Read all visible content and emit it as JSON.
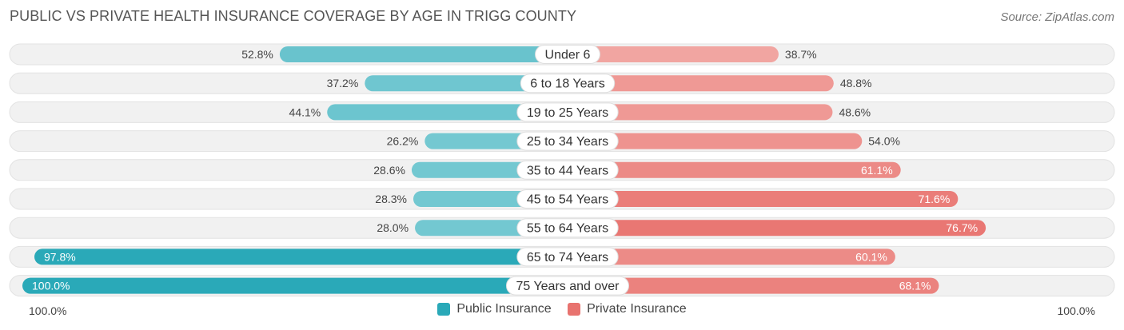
{
  "title": "PUBLIC VS PRIVATE HEALTH INSURANCE COVERAGE BY AGE IN TRIGG COUNTY",
  "source": "Source: ZipAtlas.com",
  "colors": {
    "public": "#2aa9b8",
    "public_light": "#7fcdd5",
    "private": "#e8736f",
    "private_light": "#f2aaa6",
    "row_bg": "#f0f0f0"
  },
  "axis": {
    "left_label": "100.0%",
    "right_label": "100.0%"
  },
  "legend": {
    "public": "Public Insurance",
    "private": "Private Insurance"
  },
  "chart_data": {
    "type": "bar",
    "orientation": "horizontal-diverging",
    "title": "PUBLIC VS PRIVATE HEALTH INSURANCE COVERAGE BY AGE IN TRIGG COUNTY",
    "xlim": [
      -100,
      100
    ],
    "categories": [
      "Under 6",
      "6 to 18 Years",
      "19 to 25 Years",
      "25 to 34 Years",
      "35 to 44 Years",
      "45 to 54 Years",
      "55 to 64 Years",
      "65 to 74 Years",
      "75 Years and over"
    ],
    "series": [
      {
        "name": "Public Insurance",
        "values": [
          52.8,
          37.2,
          44.1,
          26.2,
          28.6,
          28.3,
          28.0,
          97.8,
          100.0
        ],
        "labels": [
          "52.8%",
          "37.2%",
          "44.1%",
          "26.2%",
          "28.6%",
          "28.3%",
          "28.0%",
          "97.8%",
          "100.0%"
        ]
      },
      {
        "name": "Private Insurance",
        "values": [
          38.7,
          48.8,
          48.6,
          54.0,
          61.1,
          71.6,
          76.7,
          60.1,
          68.1
        ],
        "labels": [
          "38.7%",
          "48.8%",
          "48.6%",
          "54.0%",
          "61.1%",
          "71.6%",
          "76.7%",
          "60.1%",
          "68.1%"
        ]
      }
    ]
  }
}
